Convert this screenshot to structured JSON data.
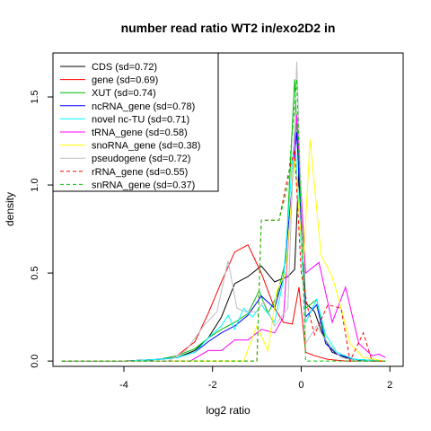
{
  "chart_data": {
    "type": "line",
    "title": "number read ratio WT2 in/exo2D2 in",
    "xlabel": "log2 ratio",
    "ylabel": "density",
    "xlim": [
      -5.6,
      2.3
    ],
    "ylim": [
      -0.03,
      1.75
    ],
    "xticks": [
      -4,
      -2,
      0,
      2
    ],
    "yticks": [
      0.0,
      0.5,
      1.0,
      1.5
    ],
    "grid": false,
    "legend_position": "top-left",
    "series": [
      {
        "name": "CDS (sd=0.72)",
        "color": "#000000",
        "dashed": false,
        "points": [
          [
            -5.4,
            0
          ],
          [
            -4.0,
            0
          ],
          [
            -3.2,
            0.01
          ],
          [
            -2.8,
            0.02
          ],
          [
            -2.4,
            0.06
          ],
          [
            -2.1,
            0.13
          ],
          [
            -1.8,
            0.25
          ],
          [
            -1.5,
            0.44
          ],
          [
            -1.2,
            0.48
          ],
          [
            -0.9,
            0.54
          ],
          [
            -0.6,
            0.45
          ],
          [
            -0.3,
            0.48
          ],
          [
            -0.15,
            0.52
          ],
          [
            -0.05,
            1.1
          ],
          [
            0.1,
            0.33
          ],
          [
            0.3,
            0.28
          ],
          [
            0.5,
            0.14
          ],
          [
            0.7,
            0.05
          ],
          [
            1.0,
            0.02
          ],
          [
            1.4,
            0.0
          ],
          [
            1.9,
            0.0
          ]
        ]
      },
      {
        "name": "gene (sd=0.69)",
        "color": "#ff0000",
        "dashed": false,
        "points": [
          [
            -5.4,
            0
          ],
          [
            -4.0,
            0
          ],
          [
            -3.2,
            0.01
          ],
          [
            -2.8,
            0.03
          ],
          [
            -2.4,
            0.11
          ],
          [
            -2.1,
            0.27
          ],
          [
            -1.8,
            0.45
          ],
          [
            -1.5,
            0.62
          ],
          [
            -1.2,
            0.66
          ],
          [
            -0.9,
            0.5
          ],
          [
            -0.6,
            0.3
          ],
          [
            -0.4,
            0.22
          ],
          [
            -0.2,
            0.21
          ],
          [
            -0.05,
            0.42
          ],
          [
            0.1,
            0.05
          ],
          [
            0.3,
            0.03
          ],
          [
            0.6,
            0.01
          ],
          [
            1.0,
            0.0
          ],
          [
            1.9,
            0.0
          ]
        ]
      },
      {
        "name": "XUT (sd=0.74)",
        "color": "#00bb00",
        "dashed": false,
        "points": [
          [
            -5.4,
            0
          ],
          [
            -4.0,
            0
          ],
          [
            -3.2,
            0.01
          ],
          [
            -2.8,
            0.03
          ],
          [
            -2.4,
            0.07
          ],
          [
            -2.1,
            0.13
          ],
          [
            -1.8,
            0.18
          ],
          [
            -1.5,
            0.22
          ],
          [
            -1.2,
            0.27
          ],
          [
            -0.95,
            0.4
          ],
          [
            -0.75,
            0.27
          ],
          [
            -0.55,
            0.37
          ],
          [
            -0.35,
            0.57
          ],
          [
            -0.15,
            1.6
          ],
          [
            0.1,
            0.3
          ],
          [
            0.35,
            0.35
          ],
          [
            0.55,
            0.12
          ],
          [
            0.8,
            0.04
          ],
          [
            1.2,
            0.01
          ],
          [
            1.9,
            0.0
          ]
        ]
      },
      {
        "name": "ncRNA_gene (sd=0.78)",
        "color": "#0000ff",
        "dashed": false,
        "points": [
          [
            -5.4,
            0
          ],
          [
            -4.0,
            0
          ],
          [
            -3.2,
            0.01
          ],
          [
            -2.8,
            0.02
          ],
          [
            -2.4,
            0.05
          ],
          [
            -2.1,
            0.11
          ],
          [
            -1.8,
            0.16
          ],
          [
            -1.5,
            0.2
          ],
          [
            -1.2,
            0.26
          ],
          [
            -0.9,
            0.37
          ],
          [
            -0.6,
            0.3
          ],
          [
            -0.4,
            0.48
          ],
          [
            -0.2,
            1.0
          ],
          [
            -0.1,
            1.3
          ],
          [
            0.1,
            0.25
          ],
          [
            0.35,
            0.32
          ],
          [
            0.55,
            0.1
          ],
          [
            0.8,
            0.04
          ],
          [
            1.2,
            0.01
          ],
          [
            1.9,
            0.0
          ]
        ]
      },
      {
        "name": "novel nc-TU (sd=0.71)",
        "color": "#00ffff",
        "dashed": false,
        "points": [
          [
            -5.4,
            0
          ],
          [
            -4.0,
            0
          ],
          [
            -3.2,
            0.01
          ],
          [
            -2.8,
            0.02
          ],
          [
            -2.4,
            0.05
          ],
          [
            -2.1,
            0.13
          ],
          [
            -1.8,
            0.2
          ],
          [
            -1.65,
            0.26
          ],
          [
            -1.5,
            0.18
          ],
          [
            -1.3,
            0.3
          ],
          [
            -1.1,
            0.25
          ],
          [
            -0.9,
            0.32
          ],
          [
            -0.6,
            0.22
          ],
          [
            -0.4,
            0.46
          ],
          [
            -0.15,
            1.3
          ],
          [
            0.1,
            0.22
          ],
          [
            0.35,
            0.35
          ],
          [
            0.55,
            0.15
          ],
          [
            0.8,
            0.05
          ],
          [
            1.2,
            0.01
          ],
          [
            1.9,
            0.0
          ]
        ]
      },
      {
        "name": "tRNA_gene (sd=0.58)",
        "color": "#ff00ff",
        "dashed": false,
        "points": [
          [
            -5.4,
            0
          ],
          [
            -2.5,
            0
          ],
          [
            -2.1,
            0.06
          ],
          [
            -1.8,
            0.06
          ],
          [
            -1.5,
            0.12
          ],
          [
            -1.2,
            0.12
          ],
          [
            -0.9,
            0.18
          ],
          [
            -0.6,
            0.16
          ],
          [
            -0.4,
            0.25
          ],
          [
            -0.1,
            1.4
          ],
          [
            0.1,
            0.5
          ],
          [
            0.4,
            0.56
          ],
          [
            0.7,
            0.22
          ],
          [
            1.0,
            0.42
          ],
          [
            1.3,
            0.1
          ],
          [
            1.6,
            0.03
          ],
          [
            1.75,
            0.04
          ],
          [
            1.9,
            0.02
          ]
        ]
      },
      {
        "name": "snoRNA_gene (sd=0.38)",
        "color": "#ffff00",
        "dashed": false,
        "points": [
          [
            -5.4,
            0
          ],
          [
            -1.3,
            0
          ],
          [
            -1.0,
            0.2
          ],
          [
            -0.75,
            0.06
          ],
          [
            -0.55,
            0.4
          ],
          [
            -0.35,
            0.5
          ],
          [
            -0.15,
            1.15
          ],
          [
            0.05,
            0.55
          ],
          [
            0.2,
            1.26
          ],
          [
            0.45,
            0.6
          ],
          [
            0.7,
            0.48
          ],
          [
            0.9,
            0.3
          ],
          [
            1.1,
            0.1
          ],
          [
            1.4,
            0.02
          ],
          [
            1.9,
            0.0
          ]
        ]
      },
      {
        "name": "pseudogene (sd=0.72)",
        "color": "#bebebe",
        "dashed": false,
        "points": [
          [
            -5.4,
            0
          ],
          [
            -3.0,
            0
          ],
          [
            -2.6,
            0.06
          ],
          [
            -2.2,
            0.2
          ],
          [
            -1.9,
            0.28
          ],
          [
            -1.65,
            0.57
          ],
          [
            -1.45,
            0.3
          ],
          [
            -1.25,
            0.28
          ],
          [
            -1.0,
            0.28
          ],
          [
            -0.85,
            0.34
          ],
          [
            -0.6,
            0.2
          ],
          [
            -0.3,
            0.3
          ],
          [
            -0.1,
            1.7
          ],
          [
            0.1,
            0.1
          ],
          [
            0.35,
            0.2
          ],
          [
            0.6,
            0.1
          ],
          [
            0.9,
            0.02
          ],
          [
            1.3,
            0.0
          ],
          [
            1.9,
            0.0
          ]
        ]
      },
      {
        "name": "rRNA_gene (sd=0.55)",
        "color": "#ff0000",
        "dashed": true,
        "points": [
          [
            -5.4,
            0
          ],
          [
            -1.3,
            0
          ],
          [
            -1.0,
            0
          ],
          [
            -0.9,
            0.8
          ],
          [
            -0.5,
            0.8
          ],
          [
            -0.3,
            1.05
          ],
          [
            -0.15,
            1.2
          ],
          [
            0.0,
            0.5
          ],
          [
            0.15,
            0.3
          ],
          [
            0.3,
            0.15
          ],
          [
            0.6,
            0.32
          ],
          [
            0.9,
            0.3
          ],
          [
            1.1,
            0.0
          ],
          [
            1.4,
            0.16
          ],
          [
            1.6,
            0.0
          ],
          [
            1.9,
            0.0
          ]
        ]
      },
      {
        "name": "snRNA_gene (sd=0.37)",
        "color": "#00cc00",
        "dashed": true,
        "points": [
          [
            -5.4,
            0
          ],
          [
            -1.3,
            0
          ],
          [
            -1.0,
            0
          ],
          [
            -0.9,
            0.8
          ],
          [
            -0.5,
            0.8
          ],
          [
            -0.3,
            1.0
          ],
          [
            -0.1,
            1.6
          ],
          [
            0.1,
            0.0
          ],
          [
            1.9,
            0.0
          ]
        ]
      }
    ]
  }
}
